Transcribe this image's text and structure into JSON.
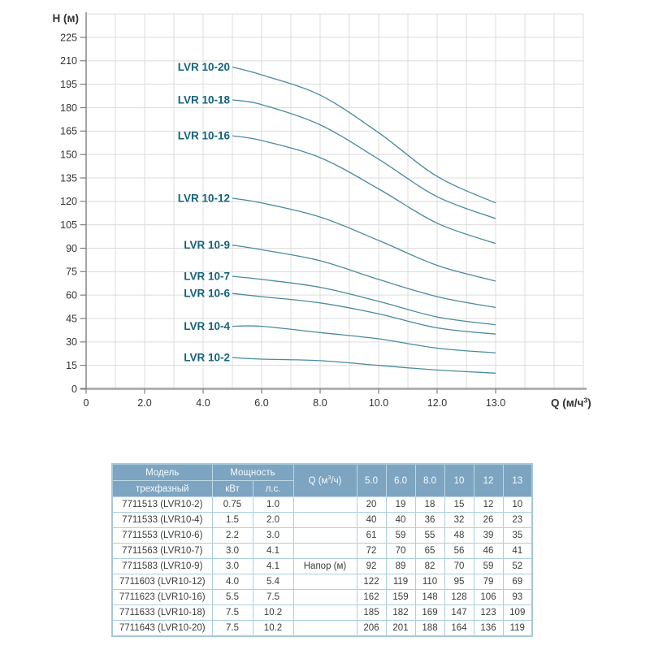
{
  "colors": {
    "curve": "#4a8b9c",
    "curve_label": "#15627c",
    "grid": "#dcdcdc",
    "x_axis": "#a3a3a3",
    "y_axis": "#7f7f7f",
    "tick_text": "#333333",
    "table_header_bg": "#7da5c1",
    "table_border": "#abcfdf"
  },
  "chart_data": {
    "type": "line",
    "title": "",
    "ylabel": "Н (м)",
    "xlabel_prefix": "Q (м/ч",
    "xlabel_sup": "3",
    "xlabel_suffix": ")",
    "x": [
      5.0,
      6.0,
      8.0,
      10,
      12,
      13
    ],
    "y_ticks": [
      0,
      15,
      30,
      45,
      60,
      75,
      90,
      105,
      120,
      135,
      150,
      165,
      180,
      195,
      210,
      225
    ],
    "x_tick_labels": [
      "0",
      "2.0",
      "4.0",
      "6.0",
      "8.0",
      "10.0",
      "12.0",
      "13.0"
    ],
    "ylim": [
      0,
      240
    ],
    "grid": "on",
    "legend_position": "inline-left-of-curve-start",
    "series": [
      {
        "name": "LVR 10-20",
        "values": [
          206,
          201,
          188,
          164,
          136,
          119
        ]
      },
      {
        "name": "LVR 10-18",
        "values": [
          185,
          182,
          169,
          147,
          123,
          109
        ]
      },
      {
        "name": "LVR 10-16",
        "values": [
          162,
          159,
          148,
          128,
          106,
          93
        ]
      },
      {
        "name": "LVR 10-12",
        "values": [
          122,
          119,
          110,
          95,
          79,
          69
        ]
      },
      {
        "name": "LVR 10-9",
        "values": [
          92,
          89,
          82,
          70,
          59,
          52
        ]
      },
      {
        "name": "LVR 10-7",
        "values": [
          72,
          70,
          65,
          56,
          46,
          41
        ]
      },
      {
        "name": "LVR 10-6",
        "values": [
          61,
          59,
          55,
          48,
          39,
          35
        ]
      },
      {
        "name": "LVR 10-4",
        "values": [
          40,
          40,
          36,
          32,
          26,
          23
        ]
      },
      {
        "name": "LVR 10-2",
        "values": [
          20,
          19,
          18,
          15,
          12,
          10
        ]
      }
    ]
  },
  "table": {
    "header": {
      "model": "Модель",
      "model_sub": "трехфазный",
      "power": "Мощность",
      "kw": "кВт",
      "hp": "л.с.",
      "q_prefix": "Q (м",
      "q_sup": "3",
      "q_suffix": "/ч)",
      "q_cols": [
        "5.0",
        "6.0",
        "8.0",
        "10",
        "12",
        "13"
      ]
    },
    "rows": [
      {
        "model": "7711513 (LVR10-2)",
        "kw": "0.75",
        "hp": "1.0",
        "q": "",
        "values": [
          "20",
          "19",
          "18",
          "15",
          "12",
          "10"
        ]
      },
      {
        "model": "7711533 (LVR10-4)",
        "kw": "1.5",
        "hp": "2.0",
        "q": "",
        "values": [
          "40",
          "40",
          "36",
          "32",
          "26",
          "23"
        ]
      },
      {
        "model": "7711553 (LVR10-6)",
        "kw": "2.2",
        "hp": "3.0",
        "q": "",
        "values": [
          "61",
          "59",
          "55",
          "48",
          "39",
          "35"
        ]
      },
      {
        "model": "7711563 (LVR10-7)",
        "kw": "3.0",
        "hp": "4.1",
        "q": "",
        "values": [
          "72",
          "70",
          "65",
          "56",
          "46",
          "41"
        ]
      },
      {
        "model": "7711583 (LVR10-9)",
        "kw": "3.0",
        "hp": "4.1",
        "q": "Напор (м)",
        "values": [
          "92",
          "89",
          "82",
          "70",
          "59",
          "52"
        ]
      },
      {
        "model": "7711603 (LVR10-12)",
        "kw": "4.0",
        "hp": "5.4",
        "q": "",
        "values": [
          "122",
          "119",
          "110",
          "95",
          "79",
          "69"
        ]
      },
      {
        "model": "7711623 (LVR10-16)",
        "kw": "5.5",
        "hp": "7.5",
        "q": "",
        "values": [
          "162",
          "159",
          "148",
          "128",
          "106",
          "93"
        ]
      },
      {
        "model": "7711633 (LVR10-18)",
        "kw": "7.5",
        "hp": "10.2",
        "q": "",
        "values": [
          "185",
          "182",
          "169",
          "147",
          "123",
          "109"
        ]
      },
      {
        "model": "7711643 (LVR10-20)",
        "kw": "7.5",
        "hp": "10.2",
        "q": "",
        "values": [
          "206",
          "201",
          "188",
          "164",
          "136",
          "119"
        ]
      }
    ]
  }
}
